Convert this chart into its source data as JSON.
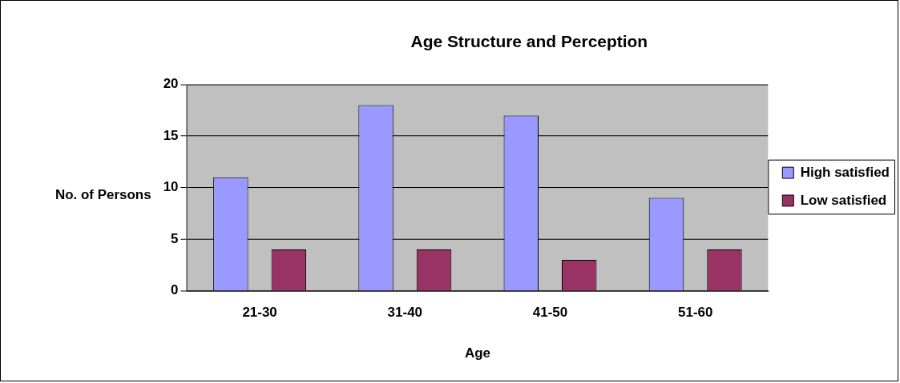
{
  "chart_data": {
    "type": "bar",
    "title": "Age Structure and Perception",
    "xlabel": "Age",
    "ylabel": "No. of Persons",
    "categories": [
      "21-30",
      "31-40",
      "41-50",
      "51-60"
    ],
    "series": [
      {
        "name": "High satisfied",
        "color": "#9999ff",
        "values": [
          11,
          18,
          17,
          9
        ]
      },
      {
        "name": "Low satisfied",
        "color": "#993366",
        "values": [
          4,
          4,
          3,
          4
        ]
      }
    ],
    "ylim": [
      0,
      20
    ],
    "yticks": [
      0,
      5,
      10,
      15,
      20
    ],
    "grid": "y",
    "legend": "right"
  }
}
